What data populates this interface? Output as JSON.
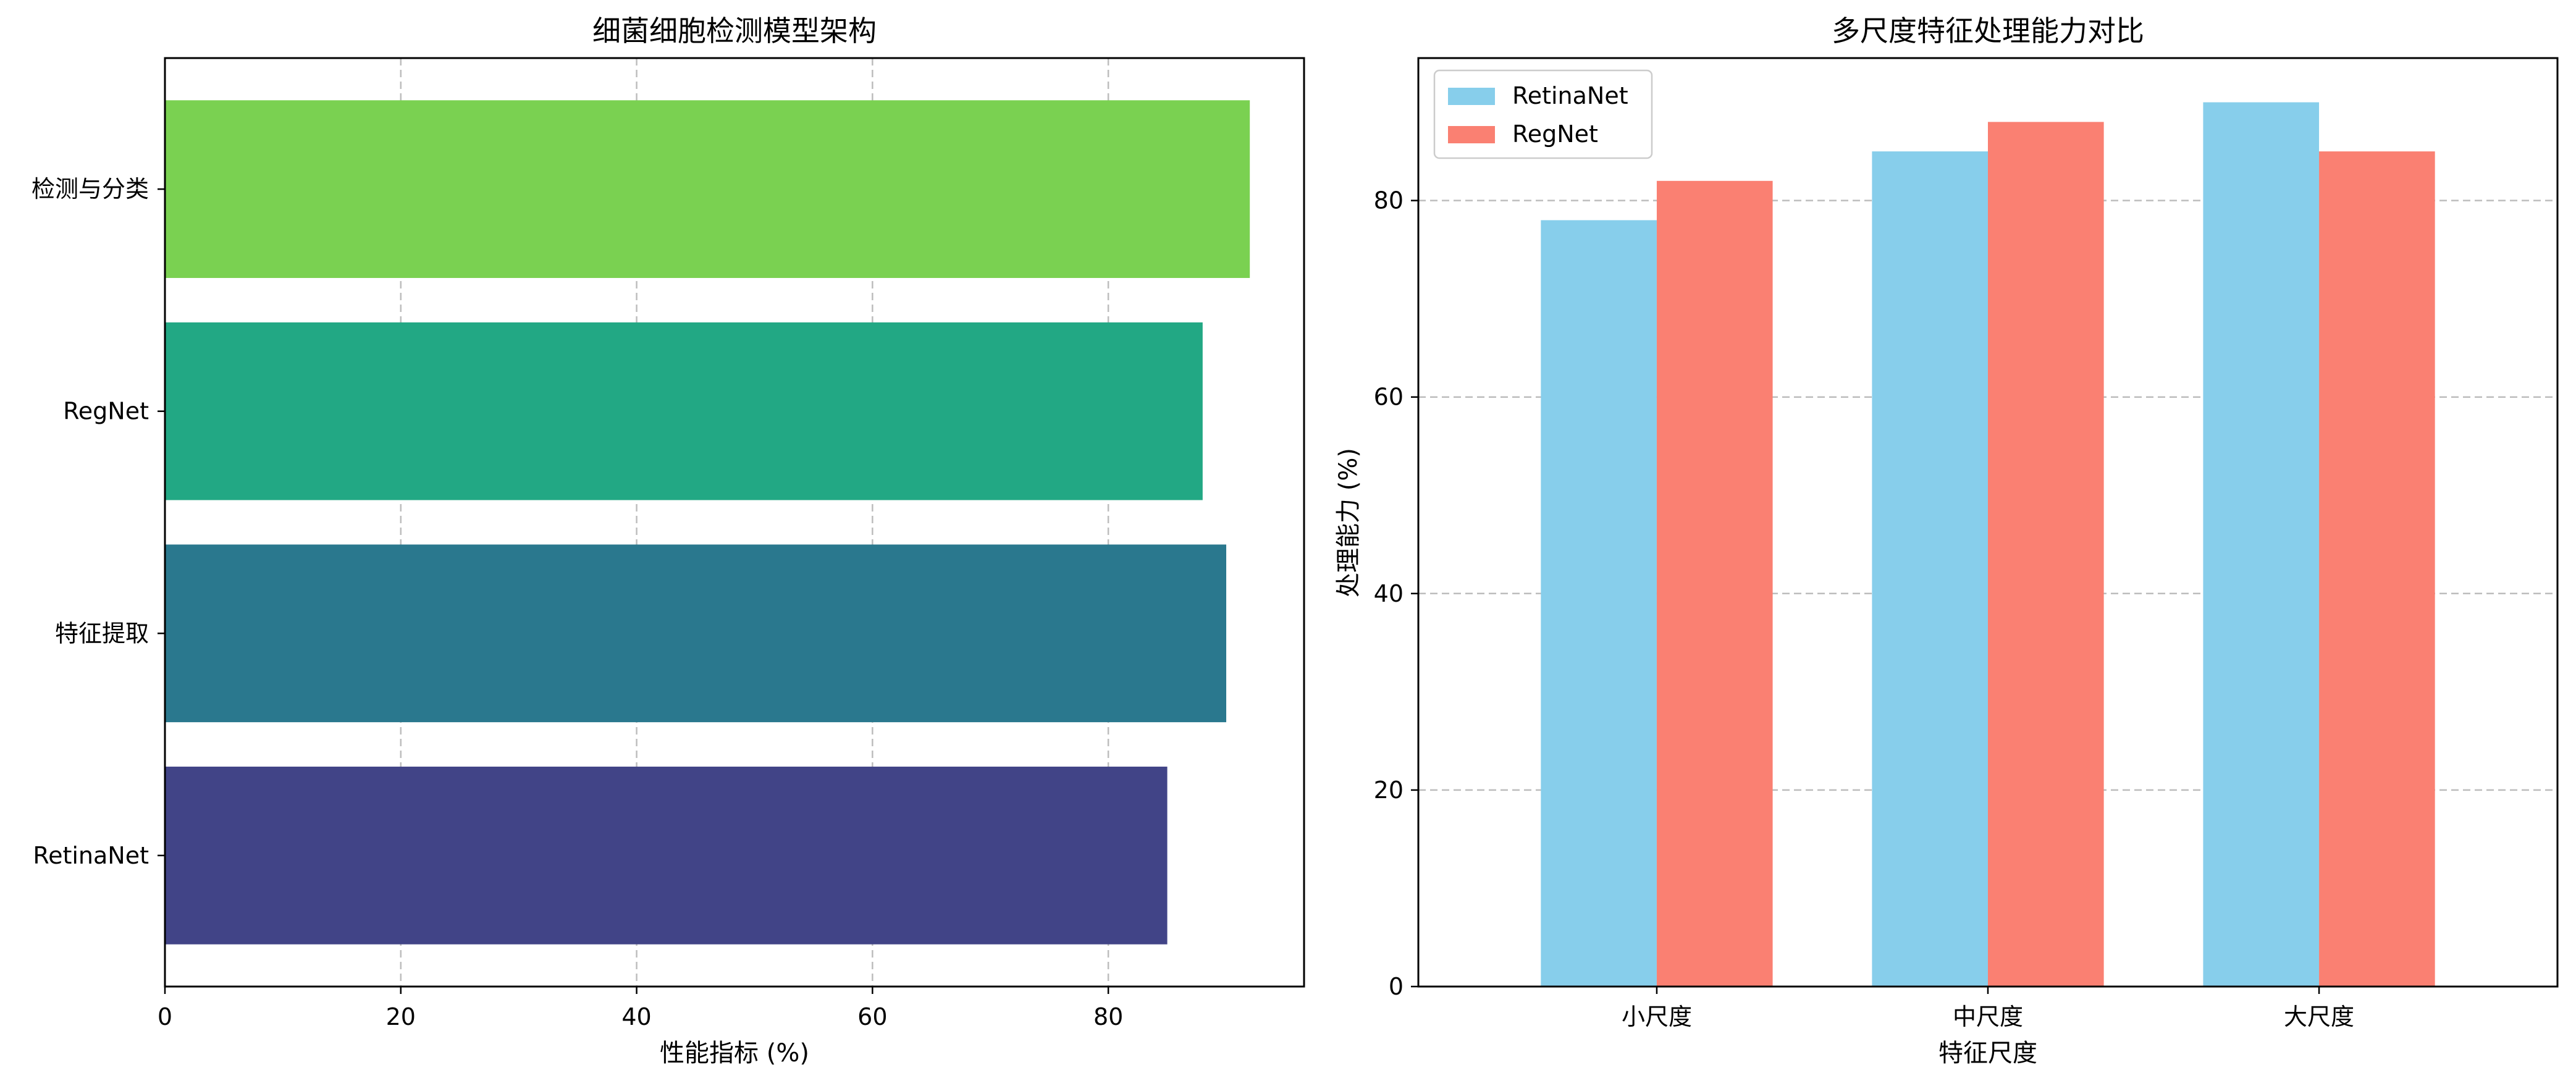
{
  "chart_data": [
    {
      "type": "bar",
      "orientation": "horizontal",
      "title": "细菌细胞检测模型架构",
      "xlabel": "性能指标 (%)",
      "ylabel": "",
      "categories": [
        "RetinaNet",
        "特征提取",
        "RegNet",
        "检测与分类"
      ],
      "values": [
        85,
        90,
        88,
        92
      ],
      "colors": [
        "#414487",
        "#2a788e",
        "#22a884",
        "#7ad151"
      ],
      "xlim": [
        0,
        96.6
      ],
      "xticks": [
        0,
        20,
        40,
        60,
        80
      ],
      "grid": "x, dashed"
    },
    {
      "type": "bar",
      "orientation": "vertical",
      "title": "多尺度特征处理能力对比",
      "xlabel": "特征尺度",
      "ylabel": "处理能力 (%)",
      "categories": [
        "小尺度",
        "中尺度",
        "大尺度"
      ],
      "series": [
        {
          "name": "RetinaNet",
          "values": [
            78,
            85,
            90
          ],
          "color": "#87ceeb"
        },
        {
          "name": "RegNet",
          "values": [
            82,
            88,
            85
          ],
          "color": "#fa8072"
        }
      ],
      "ylim": [
        0,
        94.5
      ],
      "yticks": [
        0,
        20,
        40,
        60,
        80
      ],
      "legend": "top-left",
      "grid": "y, dashed"
    }
  ]
}
